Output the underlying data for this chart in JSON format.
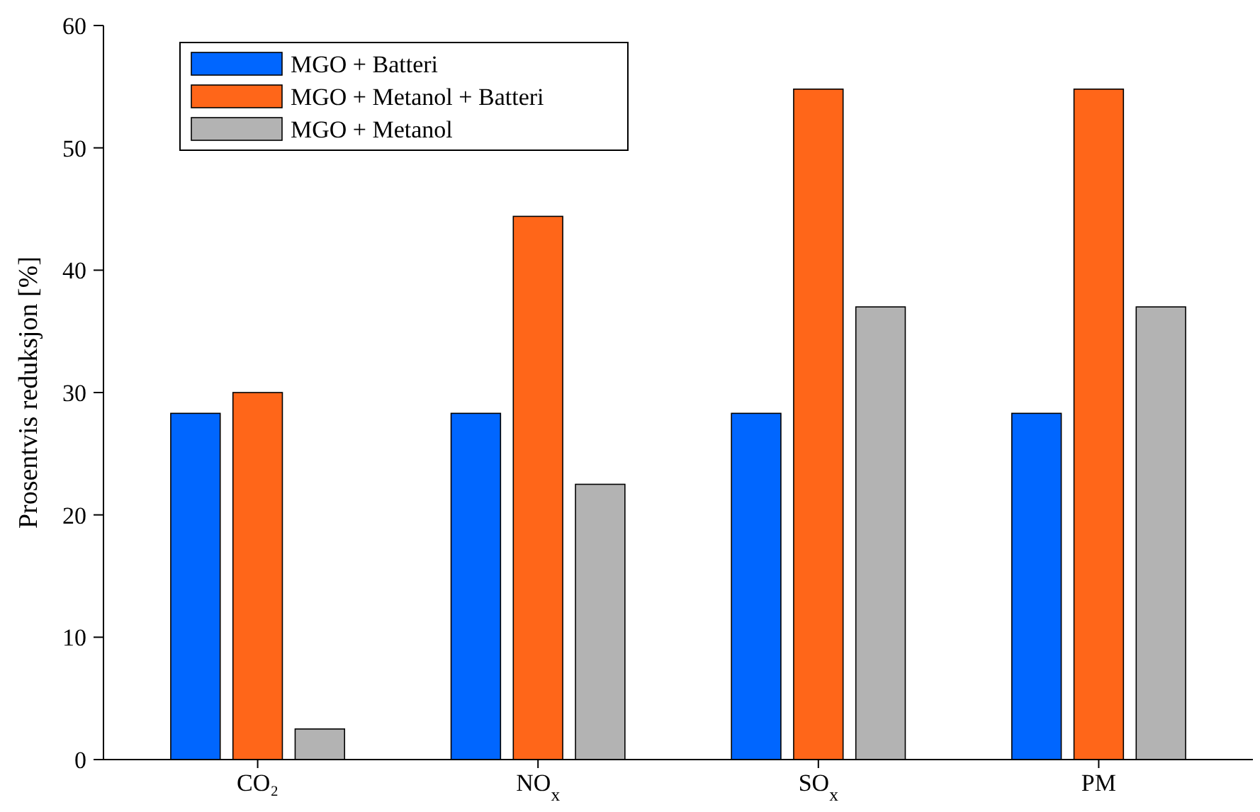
{
  "chart_data": {
    "type": "bar",
    "ylabel": "Prosentvis reduksjon [%]",
    "categories": [
      "CO₂",
      "NO$_{x}$",
      "SO$_{x}$",
      "PM"
    ],
    "series": [
      {
        "name": "MGO + Batteri",
        "color": "#0066ff",
        "values": [
          28.3,
          28.3,
          28.3,
          28.3
        ]
      },
      {
        "name": "MGO + Metanol + Batteri",
        "color": "#ff6619",
        "values": [
          30,
          44.4,
          54.8,
          54.8
        ]
      },
      {
        "name": "MGO + Metanol",
        "color": "#b3b3b3",
        "values": [
          2.5,
          22.5,
          37,
          37
        ]
      }
    ],
    "ylim": [
      0,
      60
    ],
    "yticks": [
      0,
      10,
      20,
      30,
      40,
      50,
      60
    ],
    "grid": false,
    "legend": "top left"
  }
}
